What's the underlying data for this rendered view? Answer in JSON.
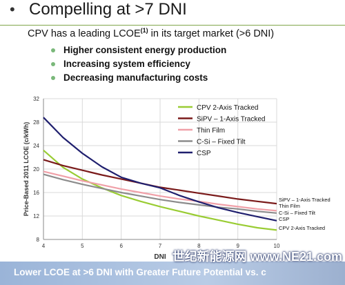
{
  "slide": {
    "bullet": "•",
    "title": "Compelling at >7 DNI",
    "subtitle_before": "CPV has a leading LCOE",
    "subtitle_sup": "(1)",
    "subtitle_after": " in its target market (>6 DNI)",
    "points": [
      "Higher consistent energy production",
      "Increasing system efficiency",
      "Decreasing manufacturing costs"
    ],
    "footer": "Lower LCOE at >6 DNI with Greater Future Potential vs. c",
    "watermark": "世纪新能源网 www.NE21.com"
  },
  "colors": {
    "cpv": "#99cc33",
    "sipv": "#7a1a1a",
    "thinfilm": "#f0a0a8",
    "csi": "#8c8c8c",
    "csp": "#1f1f6e"
  },
  "chart_data": {
    "type": "line",
    "xlabel": "DNI",
    "ylabel": "Price-Based 2011 LCOE (c/kWh)",
    "xlim": [
      4,
      10
    ],
    "ylim": [
      8,
      32
    ],
    "x_ticks": [
      "4",
      "5",
      "6",
      "7",
      "8",
      "9",
      "10"
    ],
    "y_ticks": [
      "8",
      "12",
      "16",
      "20",
      "24",
      "28",
      "32"
    ],
    "grid": true,
    "legend": "top-right",
    "series": [
      {
        "name": "CPV 2-Axis Tracked",
        "end_label": "CPV 2-Axis Tracked",
        "color_key": "cpv",
        "x": [
          4,
          4.5,
          5,
          5.5,
          6,
          6.5,
          7,
          7.5,
          8,
          8.5,
          9,
          9.5,
          10
        ],
        "y": [
          23.2,
          20.3,
          18.3,
          16.8,
          15.5,
          14.5,
          13.6,
          12.8,
          12.0,
          11.3,
          10.6,
          10.0,
          9.6
        ]
      },
      {
        "name": "SiPV – 1-Axis Tracked",
        "end_label": "SiPV – 1-Axis Tracked",
        "color_key": "sipv",
        "x": [
          4,
          4.5,
          5,
          5.5,
          6,
          6.5,
          7,
          7.5,
          8,
          8.5,
          9,
          9.5,
          10
        ],
        "y": [
          21.6,
          20.6,
          19.8,
          19.0,
          18.3,
          17.6,
          16.9,
          16.4,
          15.9,
          15.4,
          14.9,
          14.5,
          14.1
        ]
      },
      {
        "name": "Thin Film",
        "end_label": "Thin Film",
        "color_key": "thinfilm",
        "x": [
          4,
          4.5,
          5,
          5.5,
          6,
          6.5,
          7,
          7.5,
          8,
          8.5,
          9,
          9.5,
          10
        ],
        "y": [
          19.6,
          18.8,
          18.0,
          17.3,
          16.6,
          16.0,
          15.4,
          14.9,
          14.5,
          14.0,
          13.6,
          13.2,
          12.9
        ]
      },
      {
        "name": "C-Si – Fixed Tilt",
        "end_label": "C-Si – Fixed Tilt",
        "color_key": "csi",
        "x": [
          4,
          4.5,
          5,
          5.5,
          6,
          6.5,
          7,
          7.5,
          8,
          8.5,
          9,
          9.5,
          10
        ],
        "y": [
          19.1,
          18.2,
          17.4,
          16.7,
          16.0,
          15.4,
          14.8,
          14.3,
          13.9,
          13.5,
          13.2,
          12.8,
          12.5
        ]
      },
      {
        "name": "CSP",
        "end_label": "CSP",
        "color_key": "csp",
        "x": [
          4,
          4.5,
          5,
          5.5,
          6,
          6.5,
          7,
          7.5,
          8,
          8.5,
          9,
          9.5,
          10
        ],
        "y": [
          28.8,
          25.4,
          22.7,
          20.4,
          18.6,
          17.6,
          16.8,
          15.5,
          14.4,
          13.4,
          12.6,
          11.9,
          11.2
        ]
      }
    ]
  }
}
